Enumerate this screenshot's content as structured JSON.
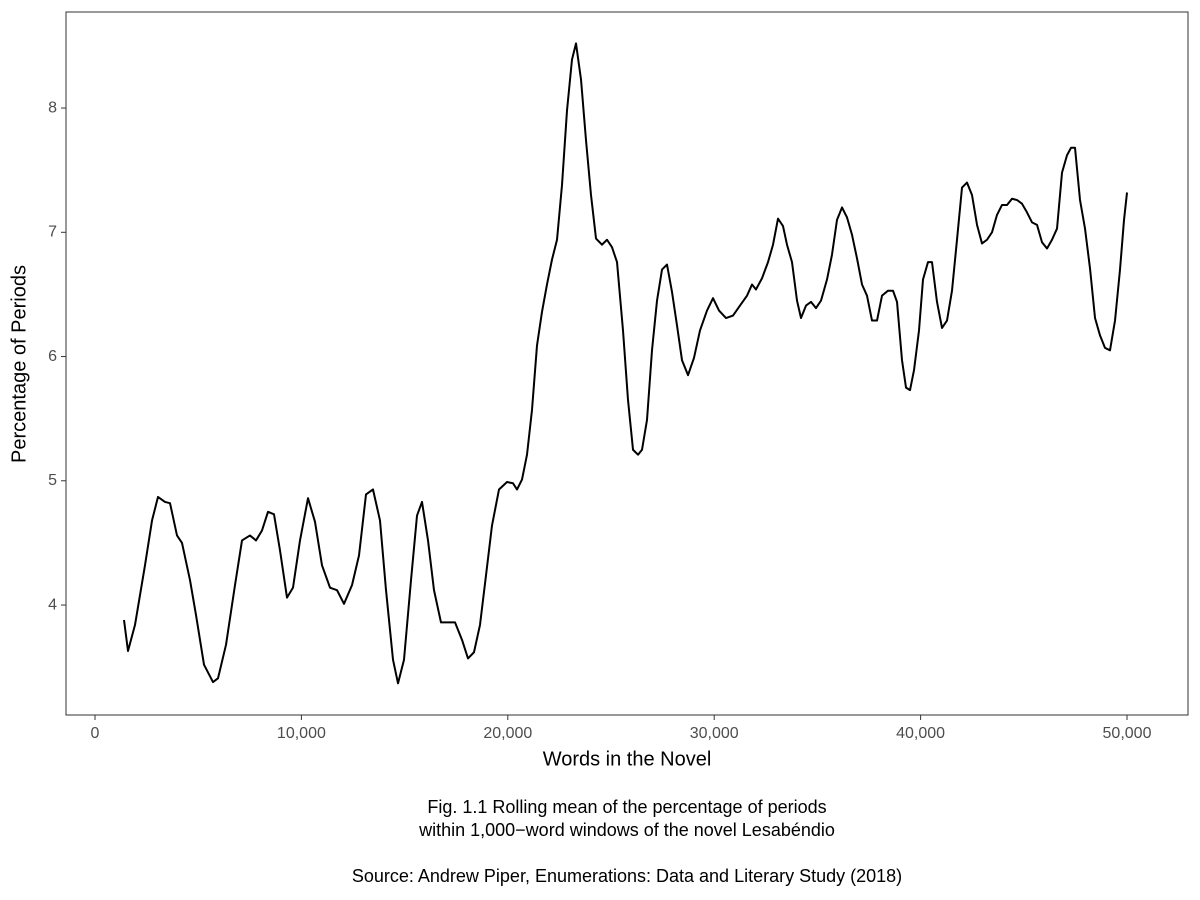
{
  "chart_data": {
    "type": "line",
    "xlabel": "Words in the Novel",
    "ylabel": "Percentage of Periods",
    "caption": [
      "Fig. 1.1 Rolling mean of the percentage of periods",
      "within 1,000−word windows of the novel Lesabéndio"
    ],
    "source": "Source: Andrew Piper, Enumerations: Data and Literary Study (2018)",
    "color": "#000000",
    "grid": false,
    "xlim": [
      -1405,
      52955
    ],
    "ylim": [
      3.115,
      8.773
    ],
    "xticks": [
      0,
      {
        "value": 10000,
        "label": "10,000"
      },
      {
        "value": 20000,
        "label": "20,000"
      },
      {
        "value": 30000,
        "label": "30,000"
      },
      {
        "value": 40000,
        "label": "40,000"
      },
      {
        "value": 50000,
        "label": "50,000"
      }
    ],
    "yticks": [
      4,
      5,
      6,
      7,
      8
    ],
    "x": [
      1405,
      1599,
      1938,
      2422,
      2762,
      3052,
      3391,
      3634,
      3973,
      4215,
      4603,
      4893,
      5281,
      5717,
      5959,
      6347,
      6783,
      7122,
      7510,
      7800,
      8091,
      8382,
      8672,
      8963,
      9302,
      9593,
      9932,
      10320,
      10659,
      10998,
      11386,
      11725,
      12064,
      12452,
      12791,
      13130,
      13469,
      13808,
      14099,
      14438,
      14680,
      14971,
      15310,
      15601,
      15843,
      16134,
      16424,
      16763,
      17102,
      17442,
      17781,
      18072,
      18362,
      18653,
      18944,
      19234,
      19574,
      19961,
      20252,
      20446,
      20688,
      20930,
      21172,
      21415,
      21657,
      21899,
      22141,
      22384,
      22626,
      22868,
      23110,
      23304,
      23547,
      23789,
      24031,
      24273,
      24564,
      24806,
      25048,
      25291,
      25581,
      25824,
      26066,
      26308,
      26502,
      26744,
      26986,
      27229,
      27471,
      27713,
      27955,
      28198,
      28440,
      28731,
      29021,
      29312,
      29651,
      29942,
      30233,
      30572,
      30911,
      31250,
      31589,
      31831,
      32025,
      32316,
      32607,
      32849,
      33091,
      33333,
      33527,
      33769,
      34012,
      34205,
      34448,
      34690,
      34932,
      35174,
      35465,
      35707,
      35950,
      36192,
      36434,
      36676,
      36919,
      37161,
      37403,
      37645,
      37888,
      38130,
      38420,
      38663,
      38857,
      39099,
      39293,
      39487,
      39680,
      39922,
      40116,
      40358,
      40552,
      40794,
      41037,
      41279,
      41521,
      41763,
      42006,
      42248,
      42490,
      42733,
      42975,
      43217,
      43459,
      43701,
      43944,
      44186,
      44428,
      44671,
      44913,
      45155,
      45397,
      45640,
      45882,
      46124,
      46366,
      46609,
      46851,
      47093,
      47287,
      47481,
      47723,
      47965,
      48207,
      48450,
      48692,
      48934,
      49176,
      49419,
      49661,
      49855,
      50000
    ],
    "values": [
      3.88,
      3.63,
      3.84,
      4.32,
      4.68,
      4.87,
      4.83,
      4.82,
      4.56,
      4.5,
      4.2,
      3.92,
      3.52,
      3.38,
      3.41,
      3.68,
      4.16,
      4.52,
      4.56,
      4.52,
      4.6,
      4.75,
      4.73,
      4.44,
      4.06,
      4.14,
      4.52,
      4.86,
      4.67,
      4.32,
      4.14,
      4.12,
      4.01,
      4.16,
      4.4,
      4.89,
      4.93,
      4.68,
      4.12,
      3.56,
      3.37,
      3.56,
      4.2,
      4.72,
      4.83,
      4.52,
      4.12,
      3.86,
      3.86,
      3.86,
      3.72,
      3.57,
      3.62,
      3.84,
      4.24,
      4.64,
      4.93,
      4.99,
      4.98,
      4.93,
      5.01,
      5.21,
      5.57,
      6.09,
      6.36,
      6.58,
      6.78,
      6.94,
      7.38,
      7.98,
      8.39,
      8.52,
      8.23,
      7.74,
      7.3,
      6.95,
      6.9,
      6.94,
      6.88,
      6.76,
      6.21,
      5.65,
      5.25,
      5.21,
      5.25,
      5.49,
      6.05,
      6.45,
      6.7,
      6.74,
      6.52,
      6.25,
      5.97,
      5.85,
      5.99,
      6.21,
      6.37,
      6.47,
      6.37,
      6.31,
      6.33,
      6.41,
      6.49,
      6.58,
      6.54,
      6.63,
      6.76,
      6.9,
      7.11,
      7.05,
      6.9,
      6.76,
      6.45,
      6.31,
      6.41,
      6.44,
      6.39,
      6.45,
      6.62,
      6.82,
      7.1,
      7.2,
      7.12,
      6.98,
      6.79,
      6.58,
      6.49,
      6.29,
      6.29,
      6.49,
      6.53,
      6.53,
      6.44,
      5.97,
      5.75,
      5.73,
      5.89,
      6.21,
      6.62,
      6.76,
      6.76,
      6.44,
      6.23,
      6.29,
      6.53,
      6.94,
      7.36,
      7.4,
      7.3,
      7.06,
      6.91,
      6.94,
      7,
      7.14,
      7.22,
      7.22,
      7.27,
      7.26,
      7.23,
      7.16,
      7.08,
      7.06,
      6.92,
      6.87,
      6.94,
      7.03,
      7.48,
      7.62,
      7.68,
      7.68,
      7.26,
      7.03,
      6.71,
      6.31,
      6.17,
      6.07,
      6.05,
      6.29,
      6.7,
      7.1,
      7.32
    ]
  }
}
